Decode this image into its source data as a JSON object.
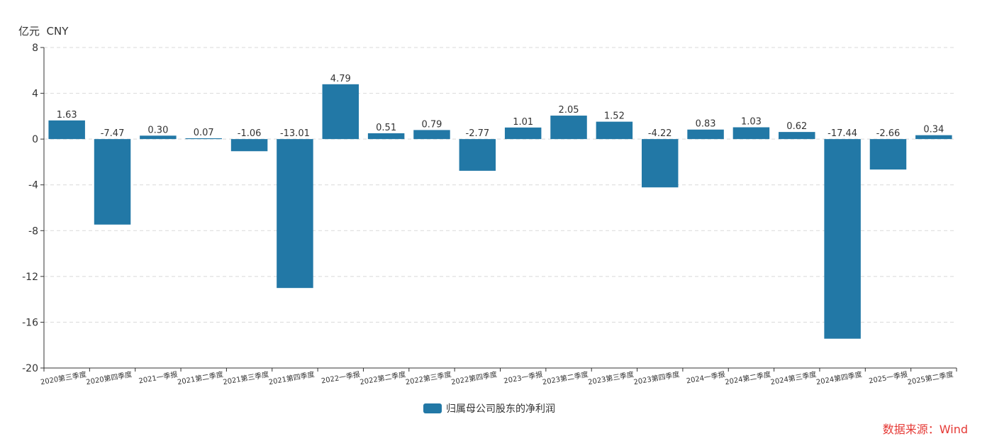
{
  "unit_label": "亿元  CNY",
  "source_label": "数据来源：Wind",
  "colors": {
    "bar": "#2278a6",
    "grid": "#d9d9d9",
    "axis": "#333333",
    "text": "#333333",
    "source": "#e53935"
  },
  "chart_data": {
    "type": "bar",
    "title": "",
    "xlabel": "",
    "ylabel": "亿元  CNY",
    "ylim": [
      -20,
      8
    ],
    "yticks": [
      8,
      4,
      0,
      -4,
      -8,
      -12,
      -16,
      -20
    ],
    "grid": true,
    "legend_position": "bottom-center",
    "categories": [
      "2020第三季度",
      "2020第四季度",
      "2021一季报",
      "2021第二季度",
      "2021第三季度",
      "2021第四季度",
      "2022一季报",
      "2022第二季度",
      "2022第三季度",
      "2022第四季度",
      "2023一季报",
      "2023第二季度",
      "2023第三季度",
      "2023第四季度",
      "2024一季报",
      "2024第二季度",
      "2024第三季度",
      "2024第四季度",
      "2025一季报",
      "2025第二季度"
    ],
    "series": [
      {
        "name": "归属母公司股东的净利润",
        "values": [
          1.63,
          -7.47,
          0.3,
          0.07,
          -1.06,
          -13.01,
          4.79,
          0.51,
          0.79,
          -2.77,
          1.01,
          2.05,
          1.52,
          -4.22,
          0.83,
          1.03,
          0.62,
          -17.44,
          -2.66,
          0.34
        ],
        "labels": [
          "1.63",
          "-7.47",
          "0.30",
          "0.07",
          "-1.06",
          "-13.01",
          "4.79",
          "0.51",
          "0.79",
          "-2.77",
          "1.01",
          "2.05",
          "1.52",
          "-4.22",
          "0.83",
          "1.03",
          "0.62",
          "-17.44",
          "-2.66",
          "0.34"
        ]
      }
    ]
  }
}
